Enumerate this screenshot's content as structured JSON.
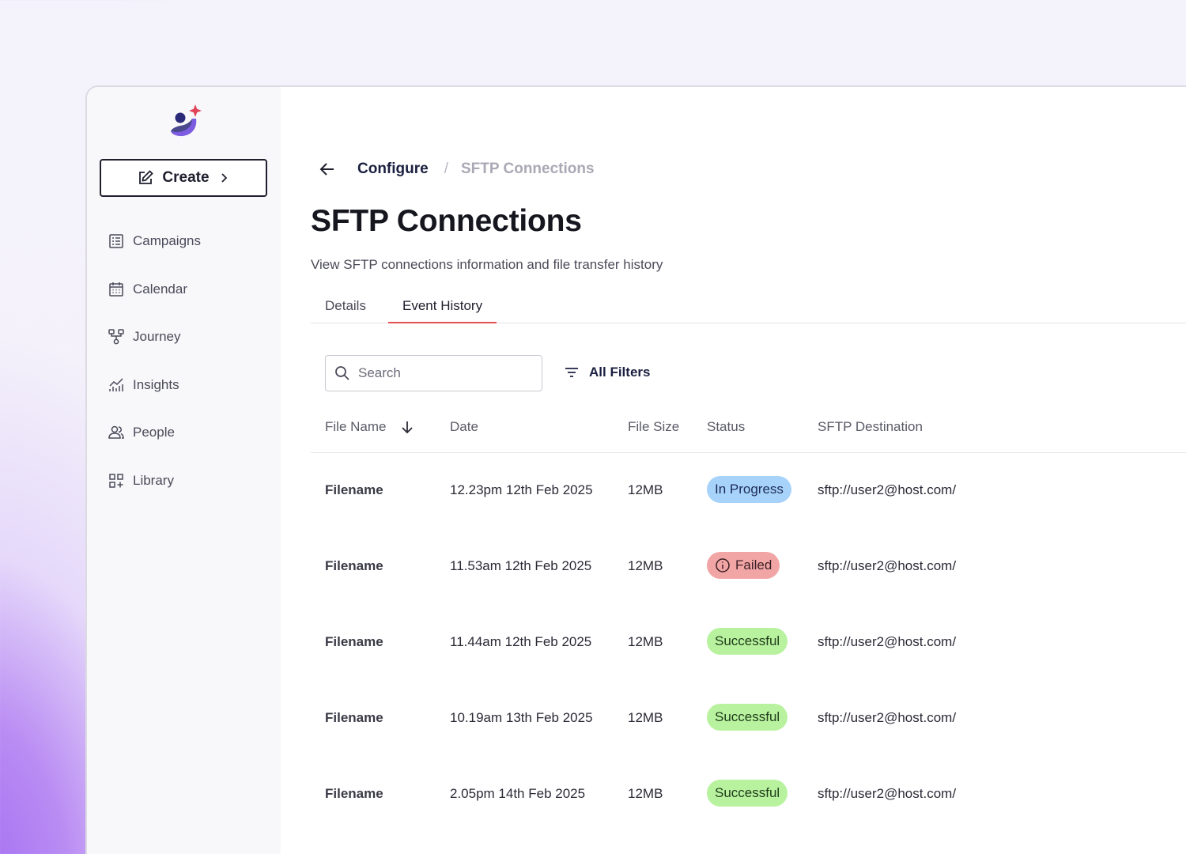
{
  "sidebar": {
    "create_label": "Create",
    "items": [
      {
        "label": "Campaigns",
        "icon": "list-icon"
      },
      {
        "label": "Calendar",
        "icon": "calendar-icon"
      },
      {
        "label": "Journey",
        "icon": "journey-icon"
      },
      {
        "label": "Insights",
        "icon": "chart-icon"
      },
      {
        "label": "People",
        "icon": "people-icon"
      },
      {
        "label": "Library",
        "icon": "library-icon"
      }
    ]
  },
  "breadcrumb": {
    "parent": "Configure",
    "separator": "/",
    "current": "SFTP Connections"
  },
  "page": {
    "title": "SFTP Connections",
    "description": "View SFTP connections information and file transfer history"
  },
  "tabs": [
    {
      "label": "Details",
      "active": false
    },
    {
      "label": "Event History",
      "active": true
    }
  ],
  "search": {
    "placeholder": "Search",
    "value": ""
  },
  "filters_label": "All Filters",
  "table": {
    "columns": [
      "File Name",
      "Date",
      "File Size",
      "Status",
      "SFTP Destination"
    ],
    "sort_column": "File Name",
    "rows": [
      {
        "filename": "Filename",
        "date": "12.23pm 12th Feb 2025",
        "size": "12MB",
        "status": "In Progress",
        "destination": "sftp://user2@host.com/"
      },
      {
        "filename": "Filename",
        "date": "11.53am 12th Feb 2025",
        "size": "12MB",
        "status": "Failed",
        "destination": "sftp://user2@host.com/"
      },
      {
        "filename": "Filename",
        "date": "11.44am 12th Feb 2025",
        "size": "12MB",
        "status": "Successful",
        "destination": "sftp://user2@host.com/"
      },
      {
        "filename": "Filename",
        "date": "10.19am 13th Feb 2025",
        "size": "12MB",
        "status": "Successful",
        "destination": "sftp://user2@host.com/"
      },
      {
        "filename": "Filename",
        "date": "2.05pm 14th Feb 2025",
        "size": "12MB",
        "status": "Successful",
        "destination": "sftp://user2@host.com/"
      }
    ]
  },
  "colors": {
    "in_progress_bg": "#a7d3fb",
    "failed_bg": "#f2a5a5",
    "successful_bg": "#b8f29e",
    "tab_underline": "#e34f4f",
    "logo_navy": "#2a2a78",
    "logo_purple": "#7c5ce0",
    "logo_star": "#e0455a"
  }
}
